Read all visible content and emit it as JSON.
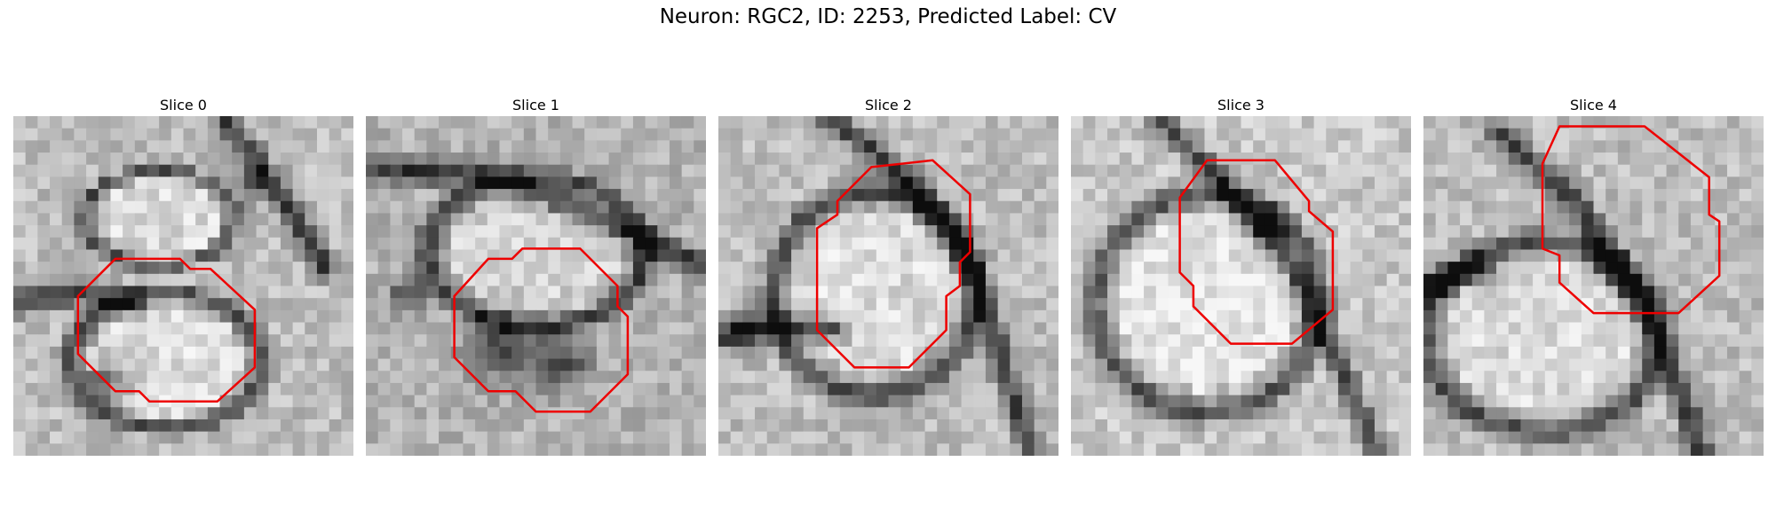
{
  "figure": {
    "title": "Neuron: RGC2, ID: 2253, Predicted Label: CV"
  },
  "panels": [
    {
      "title": "Slice 0",
      "image": "grayscale-em-slice",
      "overlay": "red-octagon-outline"
    },
    {
      "title": "Slice 1",
      "image": "grayscale-em-slice",
      "overlay": "red-octagon-outline"
    },
    {
      "title": "Slice 2",
      "image": "grayscale-em-slice",
      "overlay": "red-octagon-outline"
    },
    {
      "title": "Slice 3",
      "image": "grayscale-em-slice",
      "overlay": "red-octagon-outline"
    },
    {
      "title": "Slice 4",
      "image": "grayscale-em-slice",
      "overlay": "red-octagon-outline"
    }
  ],
  "colors": {
    "overlay": "#ee0000",
    "background": "#ffffff"
  }
}
